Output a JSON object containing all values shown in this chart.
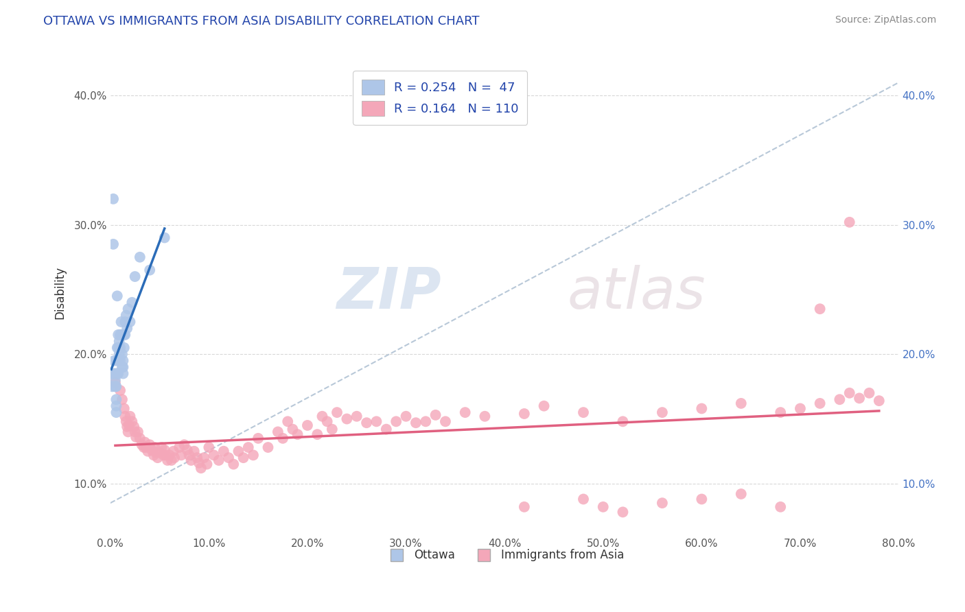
{
  "title": "OTTAWA VS IMMIGRANTS FROM ASIA DISABILITY CORRELATION CHART",
  "source_text": "Source: ZipAtlas.com",
  "ylabel": "Disability",
  "xlim": [
    0.0,
    0.8
  ],
  "ylim": [
    0.06,
    0.435
  ],
  "xticks": [
    0.0,
    0.1,
    0.2,
    0.3,
    0.4,
    0.5,
    0.6,
    0.7,
    0.8
  ],
  "xticklabels": [
    "0.0%",
    "10.0%",
    "20.0%",
    "30.0%",
    "40.0%",
    "50.0%",
    "60.0%",
    "70.0%",
    "80.0%"
  ],
  "yticks": [
    0.1,
    0.2,
    0.3,
    0.4
  ],
  "yticklabels": [
    "10.0%",
    "20.0%",
    "30.0%",
    "40.0%"
  ],
  "ottawa_color": "#aec6e8",
  "asia_color": "#f4a7b9",
  "ottawa_line_color": "#2b6cb8",
  "asia_line_color": "#e06080",
  "diag_line_color": "#b8c8d8",
  "legend_r1": "R = 0.254",
  "legend_n1": "N =  47",
  "legend_r2": "R = 0.164",
  "legend_n2": "N = 110",
  "legend_label1": "Ottawa",
  "legend_label2": "Immigrants from Asia",
  "watermark_zip": "ZIP",
  "watermark_atlas": "atlas",
  "ottawa_x": [
    0.001,
    0.002,
    0.003,
    0.003,
    0.004,
    0.004,
    0.005,
    0.005,
    0.005,
    0.006,
    0.006,
    0.006,
    0.006,
    0.007,
    0.007,
    0.007,
    0.007,
    0.007,
    0.008,
    0.008,
    0.008,
    0.008,
    0.009,
    0.009,
    0.01,
    0.01,
    0.01,
    0.011,
    0.011,
    0.012,
    0.012,
    0.013,
    0.013,
    0.013,
    0.014,
    0.014,
    0.015,
    0.015,
    0.016,
    0.017,
    0.018,
    0.02,
    0.022,
    0.025,
    0.03,
    0.04,
    0.055
  ],
  "ottawa_y": [
    0.185,
    0.175,
    0.32,
    0.285,
    0.195,
    0.185,
    0.185,
    0.18,
    0.175,
    0.175,
    0.165,
    0.16,
    0.155,
    0.245,
    0.205,
    0.195,
    0.185,
    0.185,
    0.215,
    0.205,
    0.195,
    0.185,
    0.21,
    0.2,
    0.195,
    0.215,
    0.205,
    0.225,
    0.215,
    0.2,
    0.19,
    0.185,
    0.19,
    0.195,
    0.215,
    0.205,
    0.225,
    0.215,
    0.23,
    0.22,
    0.235,
    0.225,
    0.24,
    0.26,
    0.275,
    0.265,
    0.29
  ],
  "asia_x": [
    0.005,
    0.01,
    0.012,
    0.014,
    0.015,
    0.016,
    0.017,
    0.018,
    0.019,
    0.02,
    0.022,
    0.024,
    0.025,
    0.026,
    0.028,
    0.03,
    0.032,
    0.034,
    0.035,
    0.036,
    0.038,
    0.04,
    0.042,
    0.044,
    0.045,
    0.046,
    0.048,
    0.05,
    0.052,
    0.054,
    0.055,
    0.056,
    0.058,
    0.06,
    0.062,
    0.064,
    0.065,
    0.07,
    0.072,
    0.075,
    0.078,
    0.08,
    0.082,
    0.085,
    0.088,
    0.09,
    0.092,
    0.095,
    0.098,
    0.1,
    0.105,
    0.11,
    0.115,
    0.12,
    0.125,
    0.13,
    0.135,
    0.14,
    0.145,
    0.15,
    0.16,
    0.17,
    0.175,
    0.18,
    0.185,
    0.19,
    0.2,
    0.21,
    0.215,
    0.22,
    0.225,
    0.23,
    0.24,
    0.25,
    0.26,
    0.27,
    0.28,
    0.29,
    0.3,
    0.31,
    0.32,
    0.33,
    0.34,
    0.36,
    0.38,
    0.42,
    0.44,
    0.48,
    0.52,
    0.56,
    0.6,
    0.64,
    0.68,
    0.7,
    0.72,
    0.74,
    0.75,
    0.76,
    0.77,
    0.78,
    0.42,
    0.48,
    0.5,
    0.52,
    0.56,
    0.6,
    0.64,
    0.68,
    0.72,
    0.75
  ],
  "asia_y": [
    0.178,
    0.172,
    0.165,
    0.158,
    0.152,
    0.148,
    0.144,
    0.14,
    0.145,
    0.152,
    0.148,
    0.144,
    0.14,
    0.136,
    0.14,
    0.135,
    0.13,
    0.128,
    0.132,
    0.128,
    0.125,
    0.13,
    0.126,
    0.122,
    0.128,
    0.124,
    0.12,
    0.124,
    0.128,
    0.122,
    0.126,
    0.122,
    0.118,
    0.122,
    0.118,
    0.125,
    0.12,
    0.128,
    0.122,
    0.13,
    0.126,
    0.122,
    0.118,
    0.125,
    0.12,
    0.116,
    0.112,
    0.12,
    0.115,
    0.128,
    0.122,
    0.118,
    0.125,
    0.12,
    0.115,
    0.125,
    0.12,
    0.128,
    0.122,
    0.135,
    0.128,
    0.14,
    0.135,
    0.148,
    0.142,
    0.138,
    0.145,
    0.138,
    0.152,
    0.148,
    0.142,
    0.155,
    0.15,
    0.152,
    0.147,
    0.148,
    0.142,
    0.148,
    0.152,
    0.147,
    0.148,
    0.153,
    0.148,
    0.155,
    0.152,
    0.154,
    0.16,
    0.155,
    0.148,
    0.155,
    0.158,
    0.162,
    0.155,
    0.158,
    0.162,
    0.165,
    0.17,
    0.166,
    0.17,
    0.164,
    0.082,
    0.088,
    0.082,
    0.078,
    0.085,
    0.088,
    0.092,
    0.082,
    0.235,
    0.302
  ]
}
